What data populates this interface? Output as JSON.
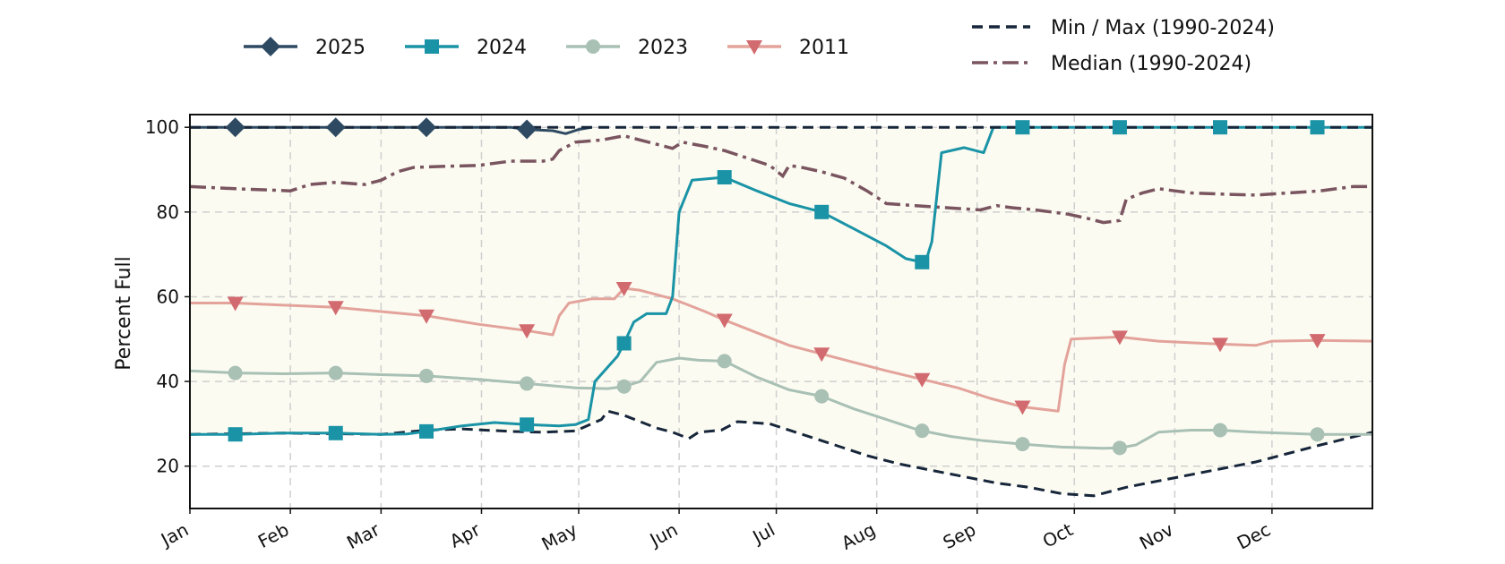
{
  "chart_data": {
    "type": "line",
    "title": "",
    "xlabel": "",
    "ylabel": "Percent Full",
    "ylim": [
      10,
      103
    ],
    "yticks": [
      20,
      40,
      60,
      80,
      100
    ],
    "months": [
      "Jan",
      "Feb",
      "Mar",
      "Apr",
      "May",
      "Jun",
      "Jul",
      "Aug",
      "Sep",
      "Oct",
      "Nov",
      "Dec"
    ],
    "grid": true,
    "legend_position": "top",
    "colors": {
      "band": "#fbfbf1",
      "2025": "#2e4a62",
      "2024": "#1a93a6",
      "2023": "#a9c0b4",
      "2011": "#e3a39b",
      "2011_marker": "#d26b70",
      "minmax": "#17263a",
      "median": "#7a5560"
    },
    "series": [
      {
        "key": "2025",
        "name": "2025",
        "marker": "diamond",
        "points": [
          [
            1,
            100
          ],
          [
            50,
            100
          ],
          [
            100,
            100
          ],
          [
            105,
            99.5
          ],
          [
            113,
            99.2
          ],
          [
            117,
            98.5
          ],
          [
            121,
            99.5
          ],
          [
            125,
            100
          ]
        ],
        "marker_days": [
          15,
          46,
          74,
          105
        ]
      },
      {
        "key": "2024",
        "name": "2024",
        "marker": "square",
        "points": [
          [
            1,
            27.5
          ],
          [
            15,
            27.5
          ],
          [
            30,
            27.8
          ],
          [
            46,
            27.8
          ],
          [
            60,
            27.5
          ],
          [
            68,
            27.6
          ],
          [
            74,
            28.2
          ],
          [
            85,
            29.5
          ],
          [
            95,
            30.3
          ],
          [
            105,
            29.8
          ],
          [
            115,
            29.5
          ],
          [
            120,
            29.8
          ],
          [
            124,
            31
          ],
          [
            126,
            40
          ],
          [
            133,
            46
          ],
          [
            135,
            49
          ],
          [
            138,
            54
          ],
          [
            142,
            56
          ],
          [
            148,
            56
          ],
          [
            150,
            60
          ],
          [
            152,
            80
          ],
          [
            156,
            87.5
          ],
          [
            166,
            88.2
          ],
          [
            176,
            85
          ],
          [
            186,
            82
          ],
          [
            196,
            80
          ],
          [
            206,
            76
          ],
          [
            216,
            72
          ],
          [
            222,
            69
          ],
          [
            228,
            68
          ],
          [
            230,
            73
          ],
          [
            233,
            94
          ],
          [
            240,
            95.2
          ],
          [
            246,
            94
          ],
          [
            249,
            100
          ],
          [
            366,
            100
          ]
        ],
        "marker_days": [
          15,
          46,
          74,
          105,
          135,
          166,
          196,
          227,
          258,
          288,
          319,
          349
        ]
      },
      {
        "key": "2023",
        "name": "2023",
        "marker": "circle",
        "points": [
          [
            1,
            42.5
          ],
          [
            15,
            42
          ],
          [
            30,
            41.8
          ],
          [
            46,
            42
          ],
          [
            60,
            41.6
          ],
          [
            74,
            41.3
          ],
          [
            90,
            40.5
          ],
          [
            105,
            39.5
          ],
          [
            120,
            38.5
          ],
          [
            130,
            38.3
          ],
          [
            135,
            38.8
          ],
          [
            140,
            40
          ],
          [
            145,
            44.5
          ],
          [
            152,
            45.5
          ],
          [
            158,
            45
          ],
          [
            166,
            44.8
          ],
          [
            176,
            41
          ],
          [
            186,
            38
          ],
          [
            196,
            36.5
          ],
          [
            206,
            33.5
          ],
          [
            216,
            31
          ],
          [
            226,
            28.5
          ],
          [
            236,
            27
          ],
          [
            246,
            26
          ],
          [
            258,
            25.2
          ],
          [
            270,
            24.5
          ],
          [
            283,
            24.2
          ],
          [
            288,
            24.3
          ],
          [
            293,
            25
          ],
          [
            300,
            28
          ],
          [
            310,
            28.5
          ],
          [
            319,
            28.5
          ],
          [
            330,
            28
          ],
          [
            349,
            27.5
          ],
          [
            366,
            27.5
          ]
        ],
        "marker_days": [
          15,
          46,
          74,
          105,
          135,
          166,
          196,
          227,
          258,
          288,
          319,
          349
        ]
      },
      {
        "key": "2011",
        "name": "2011",
        "marker": "triangle-down",
        "points": [
          [
            1,
            58.5
          ],
          [
            15,
            58.5
          ],
          [
            30,
            58
          ],
          [
            46,
            57.5
          ],
          [
            60,
            56.5
          ],
          [
            74,
            55.5
          ],
          [
            90,
            53.5
          ],
          [
            105,
            52
          ],
          [
            113,
            51
          ],
          [
            115,
            55.5
          ],
          [
            118,
            58.5
          ],
          [
            125,
            59.5
          ],
          [
            132,
            59.5
          ],
          [
            135,
            62
          ],
          [
            140,
            61.5
          ],
          [
            150,
            59.5
          ],
          [
            160,
            56.5
          ],
          [
            166,
            54.5
          ],
          [
            176,
            51.5
          ],
          [
            186,
            48.5
          ],
          [
            196,
            46.5
          ],
          [
            206,
            44.5
          ],
          [
            216,
            42.5
          ],
          [
            227,
            40.5
          ],
          [
            238,
            38.5
          ],
          [
            248,
            36
          ],
          [
            258,
            34
          ],
          [
            269,
            33
          ],
          [
            271,
            44
          ],
          [
            273,
            50
          ],
          [
            288,
            50.5
          ],
          [
            300,
            49.5
          ],
          [
            319,
            48.8
          ],
          [
            330,
            48.5
          ],
          [
            335,
            49.5
          ],
          [
            349,
            49.7
          ],
          [
            366,
            49.5
          ]
        ],
        "marker_days": [
          15,
          46,
          74,
          105,
          135,
          166,
          196,
          227,
          258,
          288,
          319,
          349
        ]
      }
    ],
    "reference": [
      {
        "key": "max",
        "name": "Min / Max (1990-2024)",
        "style": "dashed",
        "points": [
          [
            1,
            100
          ],
          [
            366,
            100
          ]
        ]
      },
      {
        "key": "min",
        "name": "Min / Max (1990-2024)",
        "style": "dashed",
        "in_legend": false,
        "points": [
          [
            1,
            27.5
          ],
          [
            30,
            27.8
          ],
          [
            60,
            27.5
          ],
          [
            74,
            28.5
          ],
          [
            85,
            28.8
          ],
          [
            100,
            28.2
          ],
          [
            110,
            28
          ],
          [
            120,
            28.3
          ],
          [
            128,
            31
          ],
          [
            130,
            33
          ],
          [
            135,
            32
          ],
          [
            140,
            30.5
          ],
          [
            145,
            29
          ],
          [
            150,
            28
          ],
          [
            155,
            26.5
          ],
          [
            158,
            28
          ],
          [
            165,
            28.5
          ],
          [
            170,
            30.5
          ],
          [
            180,
            30
          ],
          [
            190,
            27.5
          ],
          [
            200,
            25
          ],
          [
            210,
            22.5
          ],
          [
            220,
            20.5
          ],
          [
            230,
            19
          ],
          [
            240,
            17.5
          ],
          [
            250,
            16
          ],
          [
            260,
            15
          ],
          [
            270,
            13.5
          ],
          [
            280,
            13
          ],
          [
            290,
            15
          ],
          [
            300,
            16.5
          ],
          [
            310,
            18
          ],
          [
            320,
            19.5
          ],
          [
            330,
            21
          ],
          [
            340,
            23
          ],
          [
            350,
            25
          ],
          [
            366,
            28
          ]
        ]
      },
      {
        "key": "median",
        "name": "Median (1990-2024)",
        "style": "dashdot",
        "points": [
          [
            1,
            86
          ],
          [
            15,
            85.5
          ],
          [
            25,
            85.2
          ],
          [
            32,
            85
          ],
          [
            38,
            86.5
          ],
          [
            46,
            87
          ],
          [
            55,
            86.5
          ],
          [
            60,
            87.5
          ],
          [
            65,
            89.5
          ],
          [
            70,
            90.5
          ],
          [
            80,
            90.8
          ],
          [
            90,
            91
          ],
          [
            100,
            92
          ],
          [
            110,
            92
          ],
          [
            113,
            92.5
          ],
          [
            115,
            94.5
          ],
          [
            120,
            96.5
          ],
          [
            128,
            97
          ],
          [
            135,
            98
          ],
          [
            140,
            97
          ],
          [
            145,
            96
          ],
          [
            150,
            95
          ],
          [
            153,
            96.5
          ],
          [
            160,
            95.5
          ],
          [
            166,
            94.5
          ],
          [
            172,
            93
          ],
          [
            180,
            91
          ],
          [
            184,
            88.5
          ],
          [
            186,
            91
          ],
          [
            190,
            90.5
          ],
          [
            196,
            89.5
          ],
          [
            203,
            88
          ],
          [
            210,
            85
          ],
          [
            216,
            82
          ],
          [
            225,
            81.5
          ],
          [
            235,
            81
          ],
          [
            245,
            80.5
          ],
          [
            250,
            81.5
          ],
          [
            255,
            81
          ],
          [
            262,
            80.5
          ],
          [
            272,
            79.5
          ],
          [
            278,
            78.5
          ],
          [
            283,
            77.5
          ],
          [
            288,
            78
          ],
          [
            290,
            83
          ],
          [
            295,
            84.5
          ],
          [
            300,
            85.5
          ],
          [
            305,
            85
          ],
          [
            310,
            84.5
          ],
          [
            320,
            84.2
          ],
          [
            330,
            84
          ],
          [
            340,
            84.5
          ],
          [
            350,
            85
          ],
          [
            360,
            86
          ],
          [
            366,
            86
          ]
        ]
      }
    ]
  }
}
